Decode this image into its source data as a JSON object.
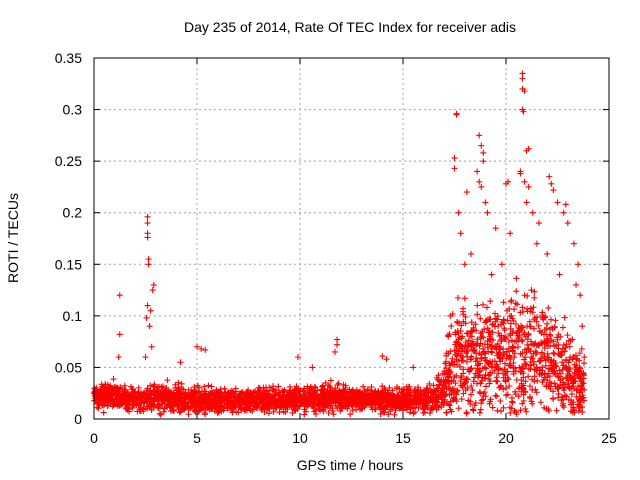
{
  "chart_data": {
    "type": "scatter",
    "title": "Day 235 of 2014, Rate Of TEC Index for receiver adis",
    "xlabel": "GPS time / hours",
    "ylabel": "ROTI / TECUs",
    "xlim": [
      0,
      25
    ],
    "ylim": [
      0,
      0.35
    ],
    "x_ticks": [
      "0",
      "5",
      "10",
      "15",
      "20",
      "25"
    ],
    "y_ticks": [
      "0",
      "0.05",
      "0.1",
      "0.15",
      "0.2",
      "0.25",
      "0.3",
      "0.35"
    ],
    "grid": true,
    "marker": "+",
    "color": "#ff0000",
    "series": [
      {
        "name": "ROTI",
        "outliers": [
          {
            "x": 1.25,
            "y": 0.12
          },
          {
            "x": 1.25,
            "y": 0.082
          },
          {
            "x": 1.2,
            "y": 0.06
          },
          {
            "x": 2.6,
            "y": 0.196
          },
          {
            "x": 2.6,
            "y": 0.19
          },
          {
            "x": 2.6,
            "y": 0.18
          },
          {
            "x": 2.6,
            "y": 0.176
          },
          {
            "x": 2.65,
            "y": 0.155
          },
          {
            "x": 2.65,
            "y": 0.15
          },
          {
            "x": 2.6,
            "y": 0.11
          },
          {
            "x": 2.55,
            "y": 0.098
          },
          {
            "x": 2.9,
            "y": 0.13
          },
          {
            "x": 2.85,
            "y": 0.125
          },
          {
            "x": 2.75,
            "y": 0.105
          },
          {
            "x": 2.7,
            "y": 0.09
          },
          {
            "x": 2.8,
            "y": 0.07
          },
          {
            "x": 2.5,
            "y": 0.06
          },
          {
            "x": 5.0,
            "y": 0.07
          },
          {
            "x": 5.2,
            "y": 0.068
          },
          {
            "x": 5.4,
            "y": 0.067
          },
          {
            "x": 4.2,
            "y": 0.055
          },
          {
            "x": 11.8,
            "y": 0.077
          },
          {
            "x": 11.8,
            "y": 0.072
          },
          {
            "x": 11.7,
            "y": 0.065
          },
          {
            "x": 10.6,
            "y": 0.05
          },
          {
            "x": 9.9,
            "y": 0.06
          },
          {
            "x": 14.0,
            "y": 0.061
          },
          {
            "x": 14.2,
            "y": 0.058
          },
          {
            "x": 15.5,
            "y": 0.05
          },
          {
            "x": 17.6,
            "y": 0.296
          },
          {
            "x": 17.6,
            "y": 0.295
          },
          {
            "x": 17.5,
            "y": 0.253
          },
          {
            "x": 17.5,
            "y": 0.243
          },
          {
            "x": 17.7,
            "y": 0.2
          },
          {
            "x": 17.8,
            "y": 0.18
          },
          {
            "x": 18.1,
            "y": 0.22
          },
          {
            "x": 18.3,
            "y": 0.16
          },
          {
            "x": 18.7,
            "y": 0.275
          },
          {
            "x": 18.8,
            "y": 0.265
          },
          {
            "x": 18.9,
            "y": 0.258
          },
          {
            "x": 18.9,
            "y": 0.25
          },
          {
            "x": 18.6,
            "y": 0.24
          },
          {
            "x": 18.7,
            "y": 0.23
          },
          {
            "x": 18.8,
            "y": 0.225
          },
          {
            "x": 19.0,
            "y": 0.21
          },
          {
            "x": 19.1,
            "y": 0.2
          },
          {
            "x": 19.5,
            "y": 0.185
          },
          {
            "x": 20.1,
            "y": 0.23
          },
          {
            "x": 20.0,
            "y": 0.228
          },
          {
            "x": 20.2,
            "y": 0.18
          },
          {
            "x": 20.8,
            "y": 0.335
          },
          {
            "x": 20.8,
            "y": 0.33
          },
          {
            "x": 20.8,
            "y": 0.32
          },
          {
            "x": 20.9,
            "y": 0.318
          },
          {
            "x": 20.8,
            "y": 0.3
          },
          {
            "x": 20.85,
            "y": 0.298
          },
          {
            "x": 21.1,
            "y": 0.262
          },
          {
            "x": 21.0,
            "y": 0.26
          },
          {
            "x": 20.7,
            "y": 0.24
          },
          {
            "x": 20.7,
            "y": 0.238
          },
          {
            "x": 20.9,
            "y": 0.23
          },
          {
            "x": 21.1,
            "y": 0.225
          },
          {
            "x": 21.0,
            "y": 0.21
          },
          {
            "x": 21.3,
            "y": 0.2
          },
          {
            "x": 21.6,
            "y": 0.19
          },
          {
            "x": 22.1,
            "y": 0.235
          },
          {
            "x": 22.2,
            "y": 0.228
          },
          {
            "x": 22.3,
            "y": 0.222
          },
          {
            "x": 22.5,
            "y": 0.21
          },
          {
            "x": 22.9,
            "y": 0.208
          },
          {
            "x": 22.8,
            "y": 0.2
          },
          {
            "x": 23.0,
            "y": 0.19
          },
          {
            "x": 23.3,
            "y": 0.17
          },
          {
            "x": 23.5,
            "y": 0.15
          },
          {
            "x": 23.4,
            "y": 0.13
          },
          {
            "x": 23.6,
            "y": 0.12
          },
          {
            "x": 22.6,
            "y": 0.14
          },
          {
            "x": 22.0,
            "y": 0.16
          },
          {
            "x": 21.5,
            "y": 0.17
          },
          {
            "x": 19.8,
            "y": 0.15
          },
          {
            "x": 19.3,
            "y": 0.14
          },
          {
            "x": 18.0,
            "y": 0.15
          },
          {
            "x": 17.3,
            "y": 0.1
          },
          {
            "x": 17.2,
            "y": 0.08
          },
          {
            "x": 23.7,
            "y": 0.09
          },
          {
            "x": 23.8,
            "y": 0.06
          }
        ],
        "bulk_profile": [
          {
            "x": 0,
            "median": 0.022,
            "spread": 0.012
          },
          {
            "x": 1,
            "median": 0.022,
            "spread": 0.014
          },
          {
            "x": 2,
            "median": 0.02,
            "spread": 0.012
          },
          {
            "x": 3,
            "median": 0.02,
            "spread": 0.014
          },
          {
            "x": 5,
            "median": 0.018,
            "spread": 0.014
          },
          {
            "x": 7,
            "median": 0.018,
            "spread": 0.012
          },
          {
            "x": 9,
            "median": 0.019,
            "spread": 0.012
          },
          {
            "x": 11,
            "median": 0.02,
            "spread": 0.014
          },
          {
            "x": 13,
            "median": 0.019,
            "spread": 0.012
          },
          {
            "x": 15,
            "median": 0.018,
            "spread": 0.012
          },
          {
            "x": 16.5,
            "median": 0.02,
            "spread": 0.014
          },
          {
            "x": 17,
            "median": 0.03,
            "spread": 0.03
          },
          {
            "x": 17.5,
            "median": 0.05,
            "spread": 0.05
          },
          {
            "x": 18,
            "median": 0.06,
            "spread": 0.06
          },
          {
            "x": 19,
            "median": 0.065,
            "spread": 0.06
          },
          {
            "x": 20,
            "median": 0.06,
            "spread": 0.06
          },
          {
            "x": 21,
            "median": 0.07,
            "spread": 0.07
          },
          {
            "x": 22,
            "median": 0.06,
            "spread": 0.06
          },
          {
            "x": 23,
            "median": 0.045,
            "spread": 0.045
          },
          {
            "x": 23.8,
            "median": 0.03,
            "spread": 0.03
          }
        ]
      }
    ]
  }
}
